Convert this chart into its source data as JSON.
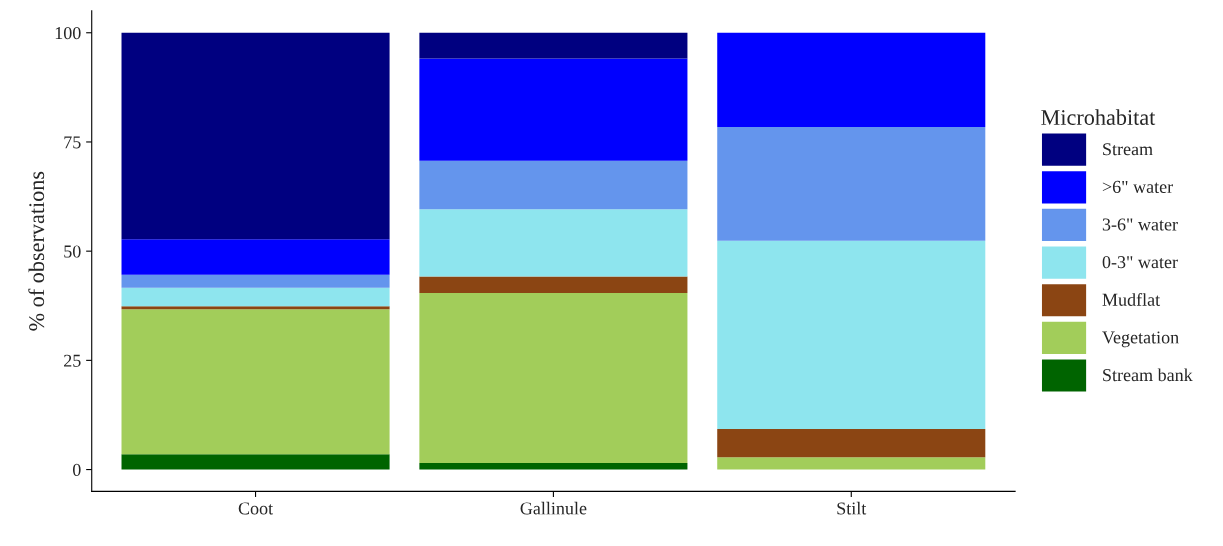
{
  "chart_data": {
    "type": "bar",
    "stacked": true,
    "ylabel": "% of observations",
    "legend_title": "Microhabitat",
    "categories": [
      "Coot",
      "Gallinule",
      "Stilt"
    ],
    "series": [
      {
        "name": "Stream bank",
        "color": "#006400",
        "values": [
          3.5,
          1.5,
          0
        ]
      },
      {
        "name": "Vegetation",
        "color": "#a2cd5a",
        "values": [
          33.2,
          38.9,
          2.8
        ]
      },
      {
        "name": "Mudflat",
        "color": "#8b4513",
        "values": [
          0.7,
          3.8,
          6.5
        ]
      },
      {
        "name": "0-3\" water",
        "color": "#8ee5ee",
        "values": [
          4.2,
          15.4,
          43.1
        ]
      },
      {
        "name": "3-6\" water",
        "color": "#6495ed",
        "values": [
          3.0,
          11.1,
          26.0
        ]
      },
      {
        "name": ">6\" water",
        "color": "#0000ff",
        "values": [
          8.1,
          23.4,
          21.6
        ]
      },
      {
        "name": "Stream",
        "color": "#000080",
        "values": [
          47.3,
          5.9,
          0
        ]
      }
    ],
    "ylim": [
      -5,
      105
    ],
    "yticks": [
      0,
      25,
      50,
      75,
      100
    ],
    "grid": false,
    "legend": "right"
  }
}
